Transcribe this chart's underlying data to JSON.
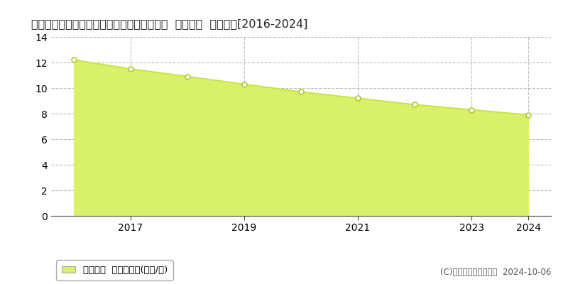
{
  "title": "愛知県知多郡南知多町大字師崎字向島８番４  基準地価  地価推移[2016-2024]",
  "years": [
    2016,
    2017,
    2018,
    2019,
    2020,
    2021,
    2022,
    2023,
    2024
  ],
  "values": [
    12.2,
    11.5,
    10.9,
    10.3,
    9.7,
    9.2,
    8.7,
    8.3,
    7.9
  ],
  "line_color": "#c8e642",
  "fill_color": "#d8f06a",
  "marker_color": "#ffffff",
  "marker_edge_color": "#b0c830",
  "bg_color": "#ffffff",
  "plot_bg_color": "#ffffff",
  "grid_color": "#bbbbbb",
  "ylim": [
    0,
    14
  ],
  "yticks": [
    0,
    2,
    4,
    6,
    8,
    10,
    12,
    14
  ],
  "xtick_labels": [
    "2017",
    "2019",
    "2021",
    "2023",
    "2024"
  ],
  "xtick_positions": [
    2017,
    2019,
    2021,
    2023,
    2024
  ],
  "legend_label": "基準地価  平均坊単価(万円/坊)",
  "copyright_text": "(C)土地価格ドットコム  2024-10-06",
  "title_fontsize": 11.5,
  "tick_fontsize": 10,
  "legend_fontsize": 9.5,
  "copyright_fontsize": 8.5,
  "xlim_left": 2015.6,
  "xlim_right": 2024.4
}
